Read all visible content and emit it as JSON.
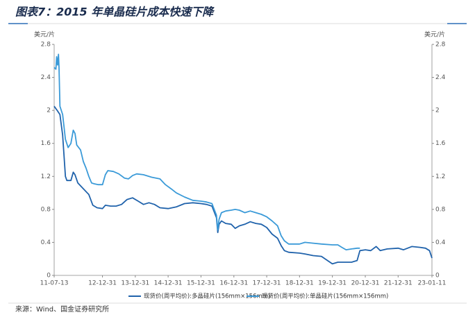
{
  "chart_data": {
    "type": "line",
    "title": "图表7：2015 年单晶硅片成本快速下降",
    "source": "来源：Wind、国金证券研究所",
    "y_unit": "美元/片",
    "xlim": [
      "11-07-13",
      "23-01-11"
    ],
    "xticks": [
      "11-07-13",
      "12-12-31",
      "13-12-31",
      "14-12-31",
      "15-12-31",
      "16-12-31",
      "17-12-31",
      "18-12-31",
      "19-12-31",
      "20-12-31",
      "21-12-31",
      "23-01-11"
    ],
    "ylim": [
      0,
      2.8
    ],
    "yticks": [
      0,
      0.4,
      0.8,
      1.2,
      1.6,
      2,
      2.4,
      2.8
    ],
    "grid": false,
    "legend": "bottom",
    "series": [
      {
        "name": "现货价(周平均价):多晶硅片(156mm×156mm)",
        "color": "#1f62ab",
        "x": [
          "11-07-13",
          "11-08-15",
          "11-09-15",
          "11-10-15",
          "11-11-15",
          "11-12-01",
          "12-01-15",
          "12-02-10",
          "12-03-01",
          "12-04-01",
          "12-06-01",
          "12-08-01",
          "12-09-15",
          "12-11-01",
          "12-12-31",
          "13-02-01",
          "13-04-01",
          "13-06-01",
          "13-08-01",
          "13-10-01",
          "13-12-01",
          "14-02-01",
          "14-04-01",
          "14-06-01",
          "14-08-01",
          "14-10-01",
          "14-12-31",
          "15-04-01",
          "15-07-01",
          "15-10-01",
          "15-12-31",
          "16-03-01",
          "16-05-01",
          "16-06-20",
          "16-07-05",
          "16-07-20",
          "16-08-15",
          "16-10-01",
          "16-12-01",
          "17-01-15",
          "17-03-01",
          "17-05-01",
          "17-07-01",
          "17-09-01",
          "17-11-01",
          "17-12-31",
          "18-03-01",
          "18-05-01",
          "18-06-10",
          "18-07-15",
          "18-09-01",
          "18-12-31",
          "19-03-01",
          "19-06-01",
          "19-09-01",
          "19-12-31",
          "20-03-01",
          "20-06-01",
          "20-08-01",
          "20-10-01",
          "20-11-01",
          "21-01-01",
          "21-03-01",
          "21-05-01",
          "21-06-15",
          "21-09-01",
          "21-12-31",
          "22-03-01",
          "22-06-01",
          "22-09-01",
          "22-11-01",
          "22-12-15",
          "23-01-11"
        ],
        "values": [
          2.05,
          2.0,
          1.95,
          1.7,
          1.2,
          1.15,
          1.15,
          1.25,
          1.22,
          1.12,
          1.05,
          0.98,
          0.85,
          0.82,
          0.81,
          0.85,
          0.84,
          0.84,
          0.86,
          0.92,
          0.94,
          0.9,
          0.86,
          0.88,
          0.86,
          0.82,
          0.81,
          0.83,
          0.87,
          0.88,
          0.87,
          0.86,
          0.84,
          0.7,
          0.52,
          0.62,
          0.66,
          0.63,
          0.62,
          0.57,
          0.6,
          0.62,
          0.65,
          0.63,
          0.62,
          0.58,
          0.5,
          0.45,
          0.36,
          0.3,
          0.28,
          0.27,
          0.26,
          0.24,
          0.23,
          0.14,
          0.16,
          0.16,
          0.16,
          0.18,
          0.3,
          0.31,
          0.3,
          0.35,
          0.3,
          0.32,
          0.33,
          0.31,
          0.35,
          0.34,
          0.33,
          0.3,
          0.21
        ]
      },
      {
        "name": "现货价(周平均价):单晶硅片(156mm×156mm)",
        "color": "#3a9ad8",
        "x": [
          "11-07-13",
          "11-08-01",
          "11-08-10",
          "11-08-20",
          "11-08-30",
          "11-09-05",
          "11-09-15",
          "11-10-15",
          "11-11-15",
          "11-12-15",
          "12-01-15",
          "12-02-10",
          "12-03-01",
          "12-03-20",
          "12-05-01",
          "12-06-01",
          "12-07-01",
          "12-08-01",
          "12-09-01",
          "12-10-01",
          "12-11-15",
          "12-12-31",
          "13-02-01",
          "13-03-01",
          "13-05-01",
          "13-07-01",
          "13-09-01",
          "13-10-15",
          "13-12-01",
          "14-01-15",
          "14-04-01",
          "14-07-01",
          "14-10-01",
          "14-12-01",
          "15-02-01",
          "15-04-01",
          "15-07-01",
          "15-10-01",
          "15-12-31",
          "16-03-01",
          "16-05-01",
          "16-06-20",
          "16-07-05",
          "16-07-20",
          "16-08-15",
          "16-10-01",
          "16-12-01",
          "17-01-15",
          "17-03-01",
          "17-05-01",
          "17-07-01",
          "17-09-01",
          "17-11-01",
          "17-12-31",
          "18-03-01",
          "18-05-01",
          "18-06-10",
          "18-07-15",
          "18-09-01",
          "18-12-31",
          "19-03-01",
          "19-06-01",
          "19-09-01",
          "19-12-31",
          "20-03-01",
          "20-04-15",
          "20-06-01",
          "20-08-01",
          "20-10-01",
          "20-11-01"
        ],
        "values": [
          2.52,
          2.5,
          2.65,
          2.55,
          2.68,
          2.52,
          2.05,
          1.95,
          1.65,
          1.55,
          1.6,
          1.76,
          1.72,
          1.58,
          1.52,
          1.38,
          1.3,
          1.2,
          1.12,
          1.11,
          1.1,
          1.1,
          1.22,
          1.27,
          1.26,
          1.23,
          1.18,
          1.17,
          1.21,
          1.23,
          1.22,
          1.19,
          1.17,
          1.1,
          1.05,
          1.0,
          0.95,
          0.91,
          0.9,
          0.89,
          0.87,
          0.73,
          0.55,
          0.68,
          0.76,
          0.78,
          0.79,
          0.8,
          0.79,
          0.76,
          0.78,
          0.76,
          0.74,
          0.71,
          0.66,
          0.6,
          0.48,
          0.42,
          0.38,
          0.38,
          0.4,
          0.39,
          0.38,
          0.37,
          0.37,
          0.34,
          0.31,
          0.32,
          0.33,
          0.33
        ]
      }
    ]
  }
}
